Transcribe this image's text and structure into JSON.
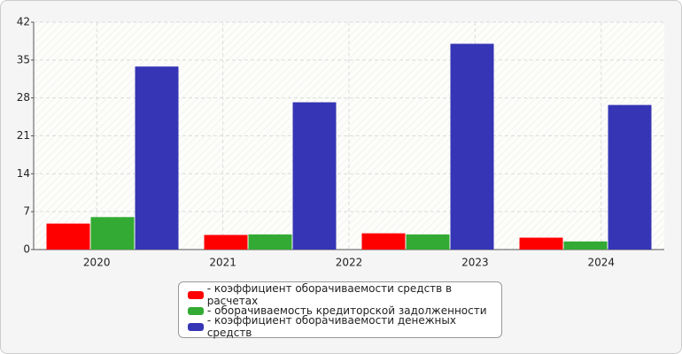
{
  "chart_data": {
    "type": "bar",
    "categories": [
      "2020",
      "2021",
      "2022",
      "2023",
      "2024"
    ],
    "series": [
      {
        "name": "- коэффициент оборачиваемости средств в расчетах",
        "color": "#ff0000",
        "values": [
          4.8,
          2.7,
          null,
          3.0,
          2.2
        ]
      },
      {
        "name": "- оборачиваемость кредиторской задолженности",
        "color": "#33aa33",
        "values": [
          6.0,
          2.8,
          null,
          2.8,
          1.5
        ]
      },
      {
        "name": "- коэффициент оборачиваемости денежных средств",
        "color": "#3535b5",
        "values": [
          33.8,
          27.2,
          null,
          38.0,
          26.7
        ]
      }
    ],
    "ylim": [
      0,
      42
    ],
    "yticks": [
      0,
      7,
      14,
      21,
      28,
      35,
      42
    ],
    "grid": true
  }
}
